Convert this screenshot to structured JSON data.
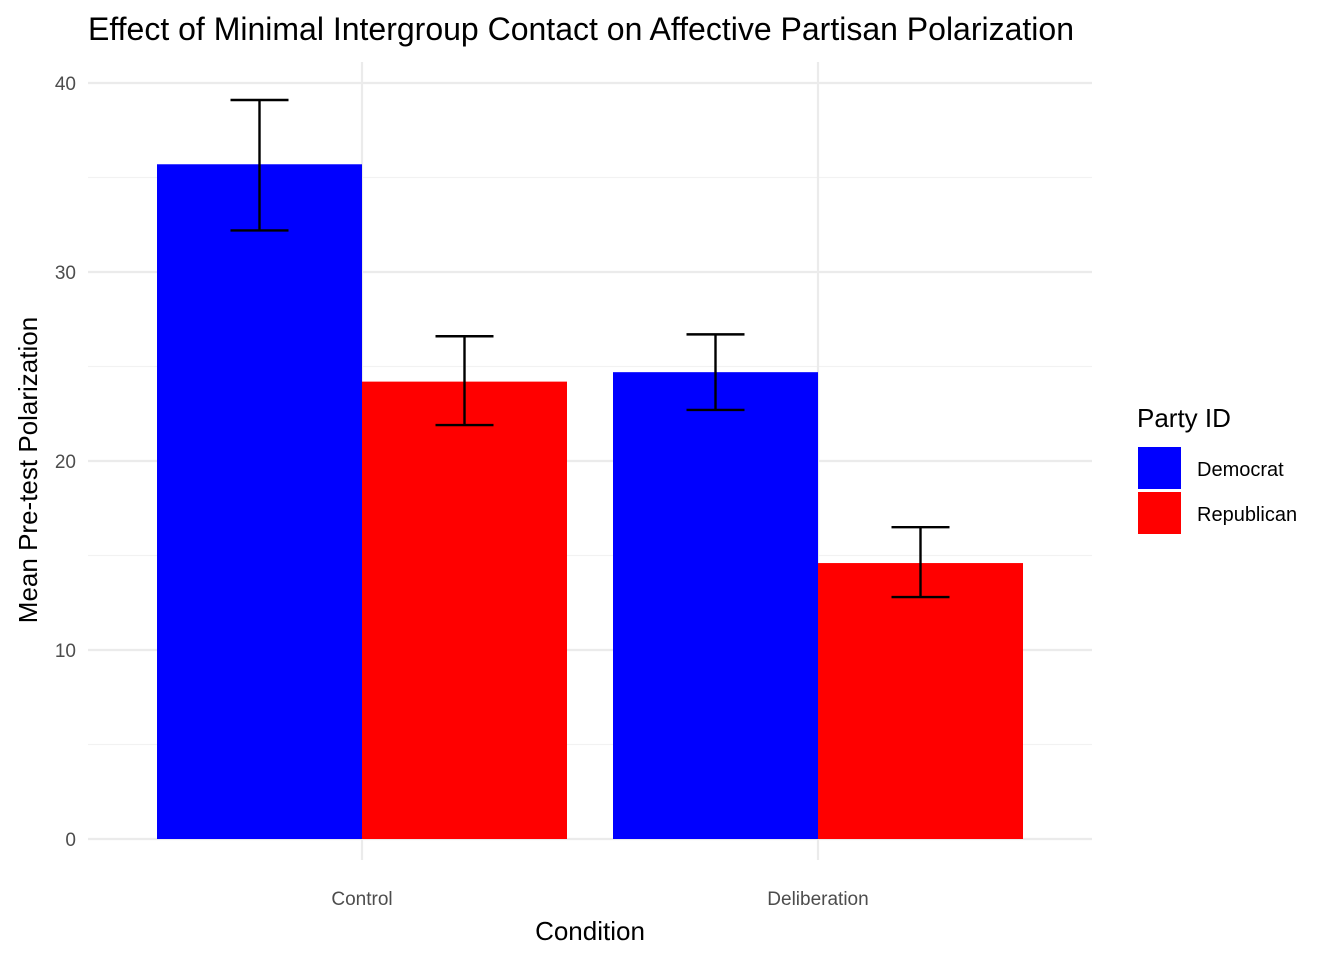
{
  "chart_data": {
    "type": "bar",
    "title": "Effect of Minimal Intergroup Contact on Affective Partisan Polarization",
    "xlabel": "Condition",
    "ylabel": "Mean Pre-test Polarization",
    "categories": [
      "Control",
      "Deliberation"
    ],
    "ylim": [
      0,
      40
    ],
    "yticks": [
      0,
      10,
      20,
      30,
      40
    ],
    "grid": true,
    "legend": {
      "title": "Party ID",
      "position": "right"
    },
    "series": [
      {
        "name": "Democrat",
        "color": "#0000ff",
        "values": [
          35.7,
          24.7
        ],
        "error_low": [
          32.2,
          22.7
        ],
        "error_high": [
          39.1,
          26.7
        ]
      },
      {
        "name": "Republican",
        "color": "#ff0000",
        "values": [
          24.2,
          14.6
        ],
        "error_low": [
          21.9,
          12.8
        ],
        "error_high": [
          26.6,
          16.5
        ]
      }
    ]
  }
}
